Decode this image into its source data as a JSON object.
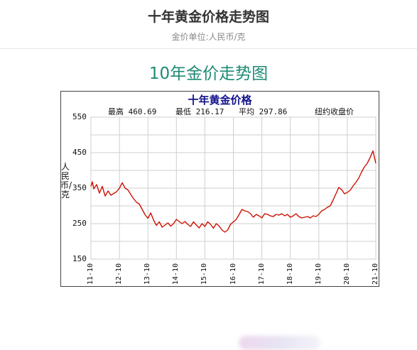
{
  "header": {
    "title": "十年黄金价格走势图",
    "subtitle": "金价单位:人民币/克"
  },
  "section": {
    "title": "10年金价走势图"
  },
  "chart": {
    "title": "十年黄金价格",
    "stats": {
      "high_label": "最高",
      "high_value": "460.69",
      "low_label": "最低",
      "low_value": "216.17",
      "avg_label": "平均",
      "avg_value": "297.86"
    },
    "source": "纽约收盘价",
    "ylabel": "人民币/克"
  },
  "colors": {
    "line": "#cc1100",
    "grid": "#cfcfcf",
    "title": "#11118a",
    "section_title": "#1f8a76"
  },
  "chart_data": {
    "type": "line",
    "title": "十年黄金价格",
    "ylabel": "人民币/克",
    "ylim": [
      150,
      550
    ],
    "yticks": [
      "150",
      "250",
      "350",
      "450",
      "550"
    ],
    "xticks": [
      "11-10",
      "12-10",
      "13-10",
      "14-10",
      "15-10",
      "16-10",
      "17-10",
      "18-10",
      "19-10",
      "20-10",
      "21-10"
    ],
    "grid": true,
    "series": [
      {
        "x": [
          0.0,
          0.05,
          0.1,
          0.2,
          0.3,
          0.4,
          0.5,
          0.6,
          0.7,
          0.8,
          0.9,
          1.0,
          1.1,
          1.2,
          1.3,
          1.4,
          1.5,
          1.6,
          1.7,
          1.8,
          1.9,
          2.0,
          2.1,
          2.2,
          2.3,
          2.4,
          2.5,
          2.6,
          2.7,
          2.8,
          2.9,
          3.0,
          3.1,
          3.2,
          3.3,
          3.4,
          3.5,
          3.6,
          3.7,
          3.8,
          3.9,
          4.0,
          4.1,
          4.2,
          4.3,
          4.4,
          4.5,
          4.6,
          4.7,
          4.8,
          4.9,
          5.0,
          5.1,
          5.2,
          5.3,
          5.4,
          5.5,
          5.6,
          5.7,
          5.8,
          5.9,
          6.0,
          6.1,
          6.2,
          6.3,
          6.4,
          6.5,
          6.6,
          6.7,
          6.8,
          6.9,
          7.0,
          7.1,
          7.2,
          7.3,
          7.4,
          7.5,
          7.6,
          7.7,
          7.8,
          7.9,
          8.0,
          8.1,
          8.2,
          8.3,
          8.4,
          8.5,
          8.6,
          8.7,
          8.8,
          8.9,
          9.0,
          9.1,
          9.2,
          9.3,
          9.4,
          9.5,
          9.6,
          9.7,
          9.8,
          9.9,
          10.0
        ],
        "y": [
          355,
          368,
          348,
          360,
          336,
          355,
          328,
          342,
          330,
          335,
          340,
          350,
          365,
          350,
          345,
          332,
          320,
          310,
          305,
          290,
          275,
          265,
          280,
          260,
          245,
          255,
          240,
          246,
          252,
          243,
          250,
          262,
          256,
          250,
          256,
          248,
          242,
          255,
          246,
          238,
          250,
          242,
          255,
          248,
          237,
          250,
          243,
          232,
          226,
          232,
          248,
          255,
          262,
          275,
          290,
          286,
          284,
          278,
          268,
          276,
          272,
          266,
          278,
          276,
          272,
          270,
          276,
          274,
          278,
          272,
          276,
          268,
          272,
          278,
          270,
          266,
          268,
          270,
          266,
          272,
          270,
          276,
          286,
          290,
          296,
          300,
          316,
          334,
          352,
          346,
          334,
          338,
          344,
          356,
          366,
          378,
          395,
          410,
          420,
          436,
          455,
          420
        ]
      }
    ],
    "note": "x is measured in years from 11-10"
  }
}
